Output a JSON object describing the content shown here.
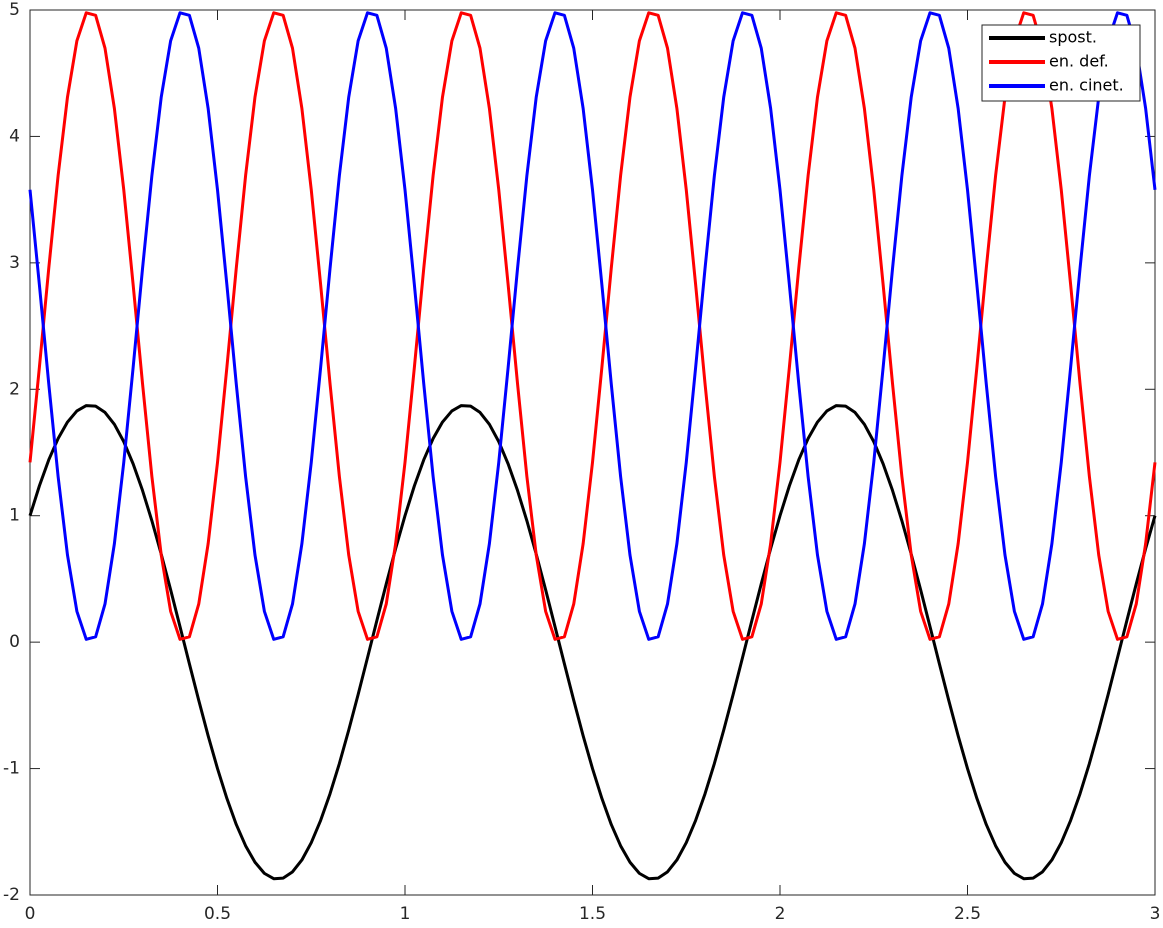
{
  "chart_data": {
    "type": "line",
    "x": [
      0,
      0.025,
      0.05,
      0.075,
      0.1,
      0.125,
      0.15,
      0.175,
      0.2,
      0.225,
      0.25,
      0.275,
      0.3,
      0.325,
      0.35,
      0.375,
      0.4,
      0.425,
      0.45,
      0.475,
      0.5,
      0.525,
      0.55,
      0.575,
      0.6,
      0.625,
      0.65,
      0.675,
      0.7,
      0.725,
      0.75,
      0.775,
      0.8,
      0.825,
      0.85,
      0.875,
      0.9,
      0.925,
      0.95,
      0.975,
      1,
      1.025,
      1.05,
      1.075,
      1.1,
      1.125,
      1.15,
      1.175,
      1.2,
      1.225,
      1.25,
      1.275,
      1.3,
      1.325,
      1.35,
      1.375,
      1.4,
      1.425,
      1.45,
      1.475,
      1.5,
      1.525,
      1.55,
      1.575,
      1.6,
      1.625,
      1.65,
      1.675,
      1.7,
      1.725,
      1.75,
      1.775,
      1.8,
      1.825,
      1.85,
      1.875,
      1.9,
      1.925,
      1.95,
      1.975,
      2,
      2.025,
      2.05,
      2.075,
      2.1,
      2.125,
      2.15,
      2.175,
      2.2,
      2.225,
      2.25,
      2.275,
      2.3,
      2.325,
      2.35,
      2.375,
      2.4,
      2.425,
      2.45,
      2.475,
      2.5,
      2.525,
      2.55,
      2.575,
      2.6,
      2.625,
      2.65,
      2.675,
      2.7,
      2.725,
      2.75,
      2.775,
      2.8,
      2.825,
      2.85,
      2.875,
      2.9,
      2.925,
      2.95,
      2.975,
      3
    ],
    "series": [
      {
        "name": "spost.",
        "color": "#000000",
        "values": [
          1,
          1.236,
          1.442,
          1.611,
          1.741,
          1.829,
          1.871,
          1.867,
          1.817,
          1.723,
          1.586,
          1.41,
          1.2,
          0.96,
          0.695,
          0.414,
          0.123,
          -0.171,
          -0.461,
          -0.74,
          -1,
          -1.236,
          -1.442,
          -1.611,
          -1.741,
          -1.829,
          -1.871,
          -1.867,
          -1.817,
          -1.723,
          -1.586,
          -1.41,
          -1.2,
          -0.96,
          -0.695,
          -0.414,
          -0.123,
          0.171,
          0.461,
          0.74,
          1,
          1.236,
          1.442,
          1.611,
          1.741,
          1.829,
          1.871,
          1.867,
          1.817,
          1.723,
          1.586,
          1.41,
          1.2,
          0.96,
          0.695,
          0.414,
          0.123,
          -0.171,
          -0.461,
          -0.74,
          -1,
          -1.236,
          -1.442,
          -1.611,
          -1.741,
          -1.829,
          -1.871,
          -1.867,
          -1.817,
          -1.723,
          -1.586,
          -1.41,
          -1.2,
          -0.96,
          -0.695,
          -0.414,
          -0.123,
          0.171,
          0.461,
          0.74,
          1,
          1.236,
          1.442,
          1.611,
          1.741,
          1.829,
          1.871,
          1.867,
          1.817,
          1.723,
          1.586,
          1.41,
          1.2,
          0.96,
          0.695,
          0.414,
          0.123,
          -0.171,
          -0.461,
          -0.74,
          -1,
          -1.236,
          -1.442,
          -1.611,
          -1.741,
          -1.829,
          -1.871,
          -1.867,
          -1.817,
          -1.723,
          -1.586,
          -1.41,
          -1.2,
          -0.96,
          -0.695,
          -0.414,
          -0.123,
          0.171,
          0.461,
          0.74,
          1
        ]
      },
      {
        "name": "en. def.",
        "color": "#ff0000",
        "values": [
          1.422,
          2.173,
          2.956,
          3.692,
          4.312,
          4.756,
          4.978,
          4.958,
          4.698,
          4.222,
          3.579,
          2.828,
          2.047,
          1.31,
          0.688,
          0.244,
          0.022,
          0.042,
          0.302,
          0.778,
          1.422,
          2.173,
          2.956,
          3.692,
          4.312,
          4.756,
          4.978,
          4.958,
          4.698,
          4.222,
          3.579,
          2.828,
          2.047,
          1.31,
          0.688,
          0.244,
          0.022,
          0.042,
          0.302,
          0.778,
          1.422,
          2.173,
          2.956,
          3.692,
          4.312,
          4.756,
          4.978,
          4.958,
          4.698,
          4.222,
          3.579,
          2.828,
          2.047,
          1.31,
          0.688,
          0.244,
          0.022,
          0.042,
          0.302,
          0.778,
          1.422,
          2.173,
          2.956,
          3.692,
          4.312,
          4.756,
          4.978,
          4.958,
          4.698,
          4.222,
          3.579,
          2.828,
          2.047,
          1.31,
          0.688,
          0.244,
          0.022,
          0.042,
          0.302,
          0.778,
          1.422,
          2.173,
          2.956,
          3.692,
          4.312,
          4.756,
          4.978,
          4.958,
          4.698,
          4.222,
          3.579,
          2.828,
          2.047,
          1.31,
          0.688,
          0.244,
          0.022,
          0.042,
          0.302,
          0.778,
          1.422,
          2.173,
          2.956,
          3.692,
          4.312,
          4.756,
          4.978,
          4.958,
          4.698,
          4.222,
          3.579,
          2.828,
          2.047,
          1.31,
          0.688,
          0.244,
          0.022,
          0.042,
          0.302,
          0.778,
          1.422
        ]
      },
      {
        "name": "en. cinet.",
        "color": "#0000ff",
        "values": [
          3.578,
          2.827,
          2.044,
          1.308,
          0.688,
          0.244,
          0.022,
          0.042,
          0.302,
          0.778,
          1.421,
          2.172,
          2.953,
          3.69,
          4.312,
          4.756,
          4.978,
          4.958,
          4.698,
          4.222,
          3.578,
          2.827,
          2.044,
          1.308,
          0.688,
          0.244,
          0.022,
          0.042,
          0.302,
          0.778,
          1.421,
          2.172,
          2.953,
          3.69,
          4.312,
          4.756,
          4.978,
          4.958,
          4.698,
          4.222,
          3.578,
          2.827,
          2.044,
          1.308,
          0.688,
          0.244,
          0.022,
          0.042,
          0.302,
          0.778,
          1.421,
          2.172,
          2.953,
          3.69,
          4.312,
          4.756,
          4.978,
          4.958,
          4.698,
          4.222,
          3.578,
          2.827,
          2.044,
          1.308,
          0.688,
          0.244,
          0.022,
          0.042,
          0.302,
          0.778,
          1.421,
          2.172,
          2.953,
          3.69,
          4.312,
          4.756,
          4.978,
          4.958,
          4.698,
          4.222,
          3.578,
          2.827,
          2.044,
          1.308,
          0.688,
          0.244,
          0.022,
          0.042,
          0.302,
          0.778,
          1.421,
          2.172,
          2.953,
          3.69,
          4.312,
          4.756,
          4.978,
          4.958,
          4.698,
          4.222,
          3.578,
          2.827,
          2.044,
          1.308,
          0.688,
          0.244,
          0.022,
          0.042,
          0.302,
          0.778,
          1.421,
          2.172,
          2.953,
          3.69,
          4.312,
          4.756,
          4.978,
          4.958,
          4.698,
          4.222,
          3.578
        ]
      }
    ],
    "xlim": [
      0,
      3
    ],
    "xticks": [
      0,
      0.5,
      1,
      1.5,
      2,
      2.5,
      3
    ],
    "ylim": [
      -2,
      5
    ],
    "yticks": [
      -2,
      -1,
      0,
      1,
      2,
      3,
      4,
      5
    ],
    "grid": false,
    "legend": "upper right"
  }
}
